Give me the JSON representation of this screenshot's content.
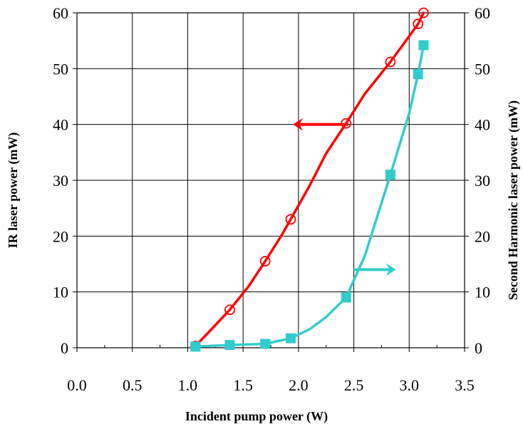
{
  "chart_data": {
    "type": "line",
    "title": "",
    "xlabel": "Incident pump power (W)",
    "ylabel_left": "IR laser power (mW)",
    "ylabel_right": "Second Harmonic laser power (mW)",
    "xlim": [
      0,
      3.5
    ],
    "ylim_left": [
      0,
      60
    ],
    "ylim_right": [
      0,
      60
    ],
    "x_ticks": [
      "0.0",
      "0.5",
      "1.0",
      "1.5",
      "2.0",
      "2.5",
      "3.0",
      "3.5"
    ],
    "y_ticks_left": [
      "0",
      "10",
      "20",
      "30",
      "40",
      "50",
      "60"
    ],
    "y_ticks_right": [
      "0",
      "10",
      "20",
      "30",
      "40",
      "50",
      "60"
    ],
    "grid": true,
    "series": [
      {
        "axis": "left",
        "color": "#ff0000",
        "marker": "open-circle",
        "x": [
          1.07,
          1.38,
          1.7,
          1.93,
          2.43,
          2.83,
          3.08,
          3.13
        ],
        "y": [
          0.3,
          6.8,
          15.5,
          23.0,
          40.2,
          51.2,
          58.0,
          60.0
        ],
        "curve_x": [
          1.07,
          1.2,
          1.38,
          1.55,
          1.7,
          1.85,
          1.93,
          2.1,
          2.25,
          2.43,
          2.6,
          2.83,
          3.0,
          3.08,
          3.13
        ],
        "curve_y": [
          0.3,
          3.0,
          6.8,
          11.0,
          15.5,
          20.2,
          23.0,
          29.0,
          34.8,
          40.2,
          45.5,
          51.2,
          55.8,
          58.0,
          60.0
        ]
      },
      {
        "axis": "right",
        "color": "#33cccc",
        "marker": "filled-square",
        "x": [
          1.07,
          1.38,
          1.7,
          1.93,
          2.43,
          2.83,
          3.08,
          3.13
        ],
        "y": [
          0.2,
          0.5,
          0.7,
          1.7,
          9.0,
          31.0,
          49.0,
          54.2
        ],
        "curve_x": [
          1.07,
          1.38,
          1.7,
          1.93,
          2.1,
          2.25,
          2.43,
          2.6,
          2.83,
          3.0,
          3.08,
          3.13
        ],
        "curve_y": [
          0.2,
          0.5,
          0.7,
          1.7,
          3.3,
          5.5,
          9.0,
          16.5,
          31.0,
          42.0,
          49.0,
          54.2
        ]
      }
    ],
    "annotations": [
      {
        "type": "arrow",
        "points_to": "left",
        "color": "#ff0000",
        "from": [
          2.45,
          40
        ],
        "to": [
          1.95,
          40
        ]
      },
      {
        "type": "arrow",
        "points_to": "right",
        "color": "#33cccc",
        "from": [
          2.5,
          14
        ],
        "to": [
          2.88,
          14
        ]
      }
    ]
  }
}
